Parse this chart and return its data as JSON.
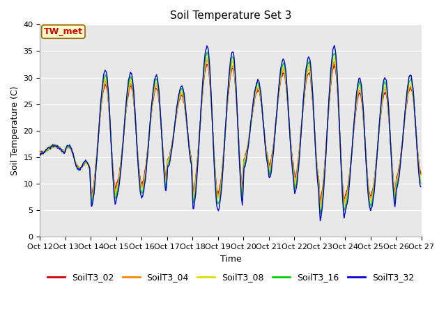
{
  "title": "Soil Temperature Set 3",
  "xlabel": "Time",
  "ylabel": "Soil Temperature (C)",
  "ylim": [
    0,
    40
  ],
  "xtick_labels": [
    "Oct 12",
    "Oct 13",
    "Oct 14",
    "Oct 15",
    "Oct 16",
    "Oct 17",
    "Oct 18",
    "Oct 19",
    "Oct 20",
    "Oct 21",
    "Oct 22",
    "Oct 23",
    "Oct 24",
    "Oct 25",
    "Oct 26",
    "Oct 27"
  ],
  "series_colors": [
    "#cc0000",
    "#ff8800",
    "#dddd00",
    "#00cc00",
    "#0000cc"
  ],
  "series_labels": [
    "SoilT3_02",
    "SoilT3_04",
    "SoilT3_08",
    "SoilT3_16",
    "SoilT3_32"
  ],
  "annotation_text": "TW_met",
  "annotation_color": "#cc0000",
  "bg_color": "#e8e8e8",
  "title_fontsize": 11,
  "axis_fontsize": 9,
  "tick_fontsize": 8,
  "legend_fontsize": 9,
  "linewidth": 1.0
}
